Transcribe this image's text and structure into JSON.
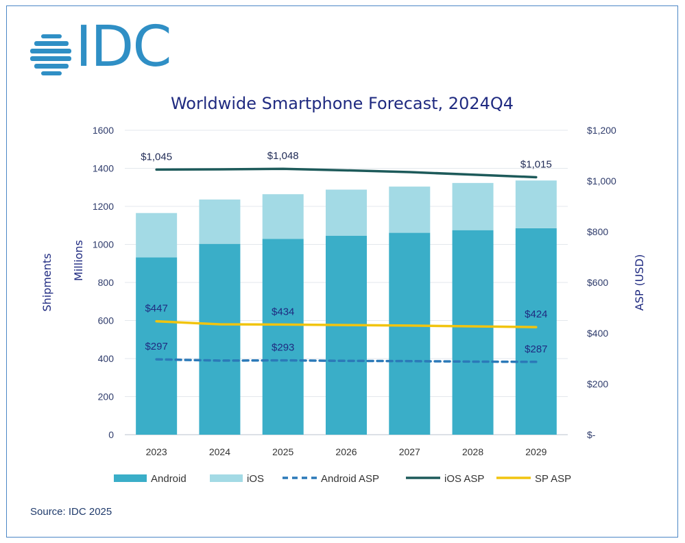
{
  "logo_text": "IDC",
  "source": "Source: IDC 2025",
  "colors": {
    "android": "#3aaec8",
    "ios": "#a3dae5",
    "android_asp": "#2b79b8",
    "ios_asp": "#1d5a5a",
    "sp_asp": "#f1c40f",
    "title": "#1f2a80",
    "axis_text": "#2e3b6b",
    "logo": "#2f8fc5",
    "frame": "#4a86c5"
  },
  "chart_data": {
    "type": "bar",
    "title": "Worldwide Smartphone Forecast, 2024Q4",
    "categories": [
      "2023",
      "2024",
      "2025",
      "2026",
      "2027",
      "2028",
      "2029"
    ],
    "left_axis": {
      "label_outer": "Shipments",
      "label_inner": "Millions",
      "range": [
        0,
        1600
      ],
      "ticks": [
        "0",
        "200",
        "400",
        "600",
        "800",
        "1000",
        "1200",
        "1400",
        "1600"
      ]
    },
    "right_axis": {
      "label": "ASP (USD)",
      "range": [
        0,
        1200
      ],
      "ticks": [
        "$-",
        "$200",
        "$400",
        "$600",
        "$800",
        "$1,000",
        "$1,200"
      ]
    },
    "series": [
      {
        "name": "Android",
        "kind": "bar",
        "values": [
          932,
          1003,
          1029,
          1046,
          1061,
          1075,
          1085
        ]
      },
      {
        "name": "iOS",
        "kind": "bar",
        "values": [
          233,
          233,
          235,
          242,
          243,
          248,
          251
        ]
      },
      {
        "name": "Android ASP",
        "kind": "line",
        "style": "dashed",
        "values": [
          297,
          292,
          293,
          291,
          290,
          288,
          287
        ],
        "labels": [
          "$297",
          "",
          "$293",
          "",
          "",
          "",
          "$287"
        ]
      },
      {
        "name": "iOS ASP",
        "kind": "line",
        "style": "solid",
        "values": [
          1045,
          1046,
          1048,
          1042,
          1035,
          1025,
          1015
        ],
        "labels": [
          "$1,045",
          "",
          "$1,048",
          "",
          "",
          "",
          "$1,015"
        ]
      },
      {
        "name": "SP ASP",
        "kind": "line",
        "style": "solid",
        "values": [
          447,
          435,
          434,
          432,
          430,
          427,
          424
        ],
        "labels": [
          "$447",
          "",
          "$434",
          "",
          "",
          "",
          "$424"
        ]
      }
    ],
    "legend": [
      "Android",
      "iOS",
      "Android ASP",
      "iOS ASP",
      "SP ASP"
    ],
    "legend_position": "bottom",
    "grid": true
  }
}
